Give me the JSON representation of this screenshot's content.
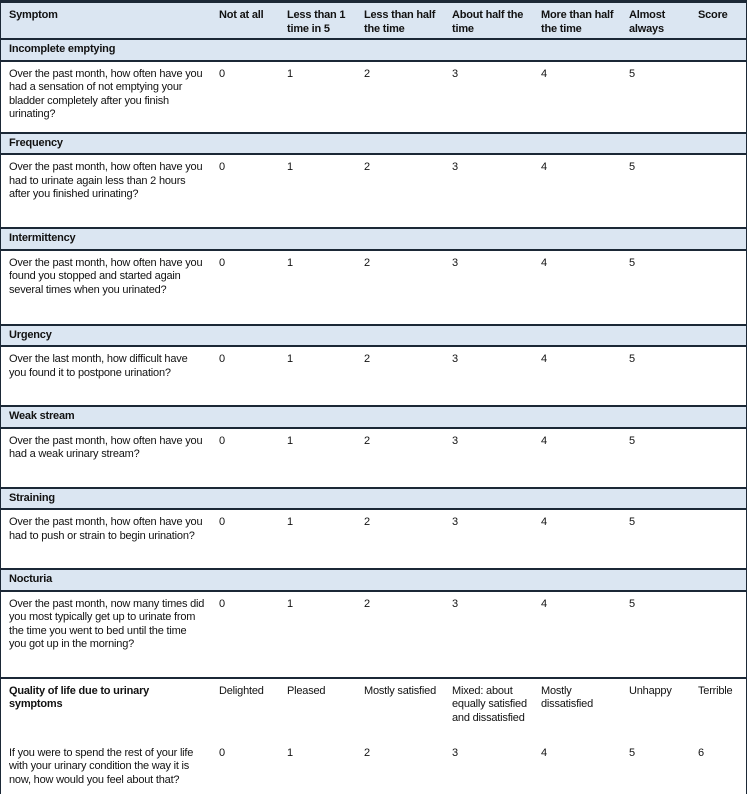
{
  "table": {
    "columns": [
      "Symptom",
      "Not at all",
      "Less than 1 time in 5",
      "Less than half the time",
      "About half the time",
      "More than half the time",
      "Almost always",
      "Score"
    ],
    "sections": [
      {
        "title": "Incomplete emptying",
        "question": "Over the past month, how often have you had a sensation of not emptying your bladder completely after you finish urinating?",
        "options": [
          "0",
          "1",
          "2",
          "3",
          "4",
          "5"
        ],
        "score": ""
      },
      {
        "title": "Frequency",
        "question": "Over the past month, how often have you had to urinate again less than 2 hours after you finished urinating?",
        "options": [
          "0",
          "1",
          "2",
          "3",
          "4",
          "5"
        ],
        "score": ""
      },
      {
        "title": "Intermittency",
        "question": "Over the past month, how often have you found you stopped and started again several times when you urinated?",
        "options": [
          "0",
          "1",
          "2",
          "3",
          "4",
          "5"
        ],
        "score": ""
      },
      {
        "title": "Urgency",
        "question": "Over the last month, how difficult have you found it to postpone urination?",
        "options": [
          "0",
          "1",
          "2",
          "3",
          "4",
          "5"
        ],
        "score": ""
      },
      {
        "title": "Weak stream",
        "question": "Over the past month, how often have you had a weak urinary stream?",
        "options": [
          "0",
          "1",
          "2",
          "3",
          "4",
          "5"
        ],
        "score": ""
      },
      {
        "title": "Straining",
        "question": "Over the past month, how often have you had to push or strain to begin urination?",
        "options": [
          "0",
          "1",
          "2",
          "3",
          "4",
          "5"
        ],
        "score": ""
      },
      {
        "title": "Nocturia",
        "question": "Over the past month, now many times did you most typically get up to urinate from the time you went to bed until the time you got up in the morning?",
        "options": [
          "0",
          "1",
          "2",
          "3",
          "4",
          "5"
        ],
        "score": ""
      }
    ],
    "qol": {
      "title": "Quality of life due to urinary symptoms",
      "labels": [
        "Delighted",
        "Pleased",
        "Mostly satisfied",
        "Mixed: about equally satisfied and dissatisfied",
        "Mostly dissatisfied",
        "Unhappy",
        "Terrible"
      ],
      "question": "If you were to spend the rest of your life with your urinary condition the way it is now, how would you feel about that?",
      "options": [
        "0",
        "1",
        "2",
        "3",
        "4",
        "5",
        "6"
      ]
    },
    "colors": {
      "band_blue": "#dbe6f2",
      "border_dark": "#1b2836",
      "text": "#121212"
    }
  }
}
